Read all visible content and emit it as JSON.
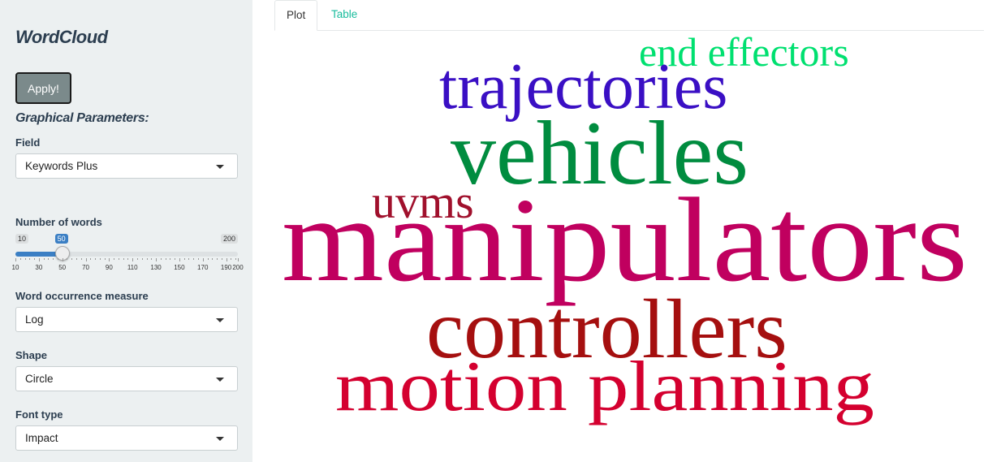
{
  "sidebar": {
    "title": "WordCloud",
    "apply_label": "Apply!",
    "graphical_params_heading": "Graphical Parameters:",
    "field": {
      "label": "Field",
      "value": "Keywords Plus"
    },
    "number_of_words": {
      "label": "Number of words",
      "min": 10,
      "max": 200,
      "value": 50,
      "min_label": "10",
      "max_label": "200",
      "value_label": "50",
      "tick_labels": [
        "10",
        "30",
        "50",
        "70",
        "90",
        "110",
        "130",
        "150",
        "170",
        "190",
        "200"
      ]
    },
    "occurrence_measure": {
      "label": "Word occurrence measure",
      "value": "Log"
    },
    "shape": {
      "label": "Shape",
      "value": "Circle"
    },
    "font_type": {
      "label": "Font type",
      "value": "Impact"
    }
  },
  "tabs": [
    {
      "label": "Plot",
      "active": true
    },
    {
      "label": "Table",
      "active": false
    }
  ],
  "colors": {
    "sidebar_bg": "#ecf0f1",
    "tab_link": "#18bc9c",
    "slider_accent": "#3b7fc4",
    "apply_bg": "#7b8a8b"
  },
  "wordcloud": {
    "words": [
      {
        "text": "manipulators",
        "color": "#c0005f"
      },
      {
        "text": "vehicles",
        "color": "#008c3f"
      },
      {
        "text": "controllers",
        "color": "#a50f0f"
      },
      {
        "text": "trajectories",
        "color": "#3a0fc4"
      },
      {
        "text": "motion planning",
        "color": "#d4002f"
      },
      {
        "text": "uvms",
        "color": "#a0102c"
      },
      {
        "text": "end effectors",
        "color": "#00e070"
      }
    ]
  }
}
